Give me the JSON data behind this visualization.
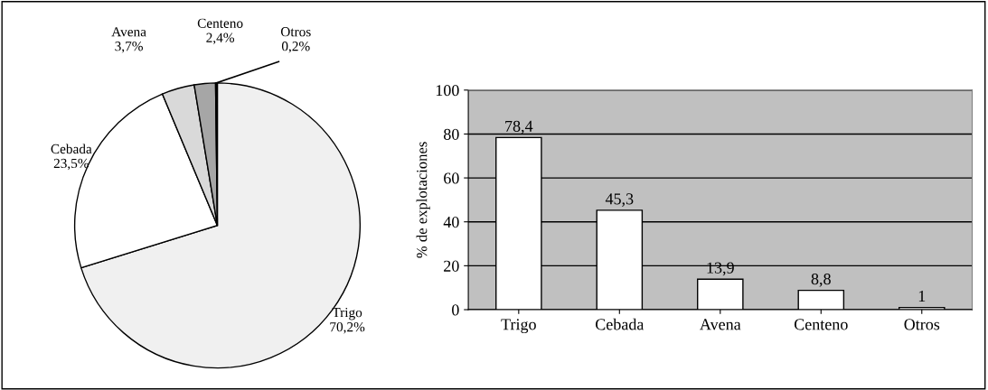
{
  "chart_data": [
    {
      "type": "pie",
      "categories": [
        "Trigo",
        "Cebada",
        "Avena",
        "Centeno",
        "Otros"
      ],
      "values": [
        70.2,
        23.5,
        3.7,
        2.4,
        0.2
      ],
      "value_labels": [
        "70,2%",
        "23,5%",
        "3,7%",
        "2,4%",
        "0,2%"
      ],
      "colors": [
        "#f0f0f0",
        "#ffffff",
        "#d9d9d9",
        "#a6a6a6",
        "#000000"
      ]
    },
    {
      "type": "bar",
      "categories": [
        "Trigo",
        "Cebada",
        "Avena",
        "Centeno",
        "Otros"
      ],
      "values": [
        78.4,
        45.3,
        13.9,
        8.8,
        1
      ],
      "value_labels": [
        "78,4",
        "45,3",
        "13,9",
        "8,8",
        "1"
      ],
      "color": "#ffffff",
      "ylabel": "% de explotaciones",
      "ylim": [
        0,
        100
      ],
      "yticks": [
        0,
        20,
        40,
        60,
        80,
        100
      ],
      "grid": "y"
    }
  ]
}
